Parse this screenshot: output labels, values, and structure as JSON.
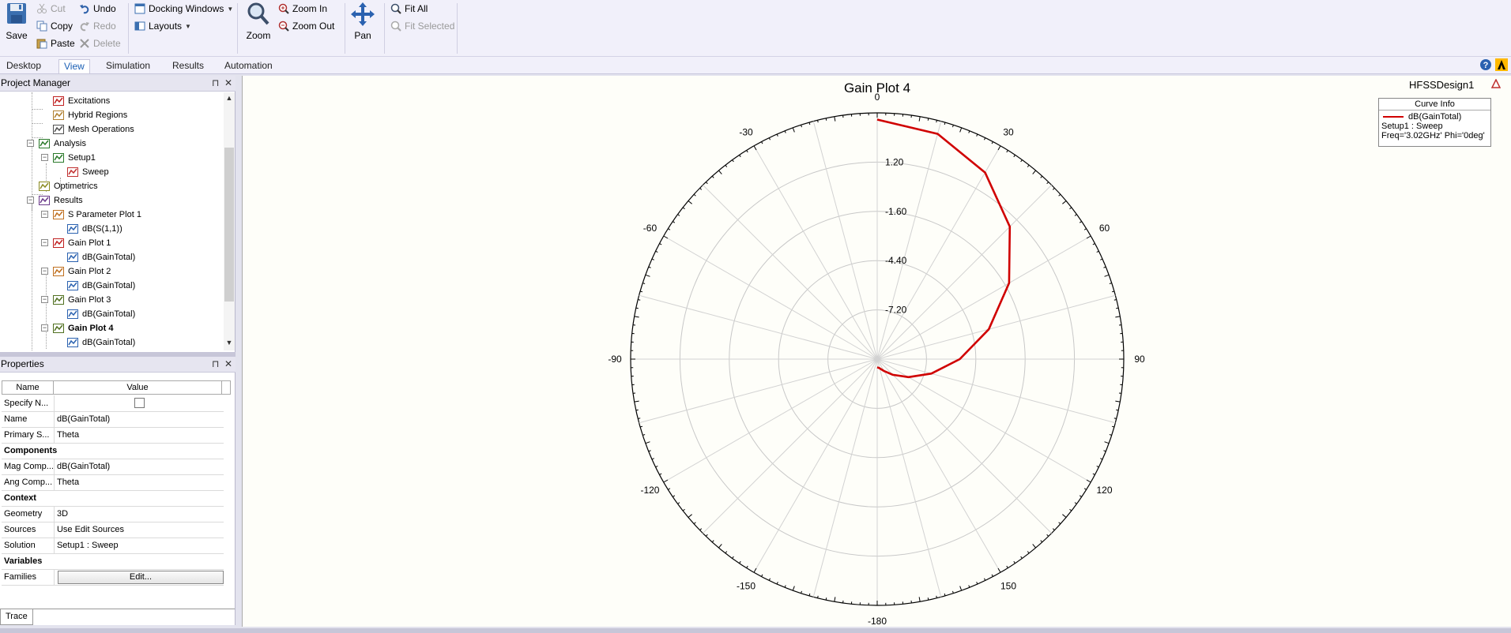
{
  "ribbon": {
    "save": "Save",
    "cut": "Cut",
    "copy": "Copy",
    "paste": "Paste",
    "undo": "Undo",
    "redo": "Redo",
    "delete": "Delete",
    "docking_windows": "Docking Windows",
    "layouts": "Layouts",
    "zoom": "Zoom",
    "zoom_in": "Zoom In",
    "zoom_out": "Zoom Out",
    "pan": "Pan",
    "fit_all": "Fit All",
    "fit_selected": "Fit Selected"
  },
  "tabs": [
    "Desktop",
    "View",
    "Simulation",
    "Results",
    "Automation"
  ],
  "active_tab": "View",
  "project_manager": {
    "title": "Project Manager",
    "tree": [
      {
        "label": "Excitations",
        "icon": "excitations-icon"
      },
      {
        "label": "Hybrid Regions",
        "icon": "hybrid-regions-icon"
      },
      {
        "label": "Mesh Operations",
        "icon": "mesh-operations-icon"
      },
      {
        "label": "Analysis",
        "icon": "analysis-icon"
      },
      {
        "label": "Setup1",
        "icon": "setup-icon"
      },
      {
        "label": "Sweep",
        "icon": "sweep-icon"
      },
      {
        "label": "Optimetrics",
        "icon": "optimetrics-icon"
      },
      {
        "label": "Results",
        "icon": "results-icon"
      },
      {
        "label": "S Parameter Plot 1",
        "icon": "rect-plot-icon"
      },
      {
        "label": "dB(S(1,1))",
        "icon": "trace-icon"
      },
      {
        "label": "Gain Plot 1",
        "icon": "3d-plot-icon"
      },
      {
        "label": "dB(GainTotal)",
        "icon": "trace-icon"
      },
      {
        "label": "Gain Plot 2",
        "icon": "rect-plot-icon"
      },
      {
        "label": "dB(GainTotal)",
        "icon": "trace-icon"
      },
      {
        "label": "Gain Plot 3",
        "icon": "polar-plot-icon"
      },
      {
        "label": "dB(GainTotal)",
        "icon": "trace-icon"
      },
      {
        "label": "Gain Plot 4",
        "icon": "polar-plot-icon"
      },
      {
        "label": "dB(GainTotal)",
        "icon": "trace-icon"
      }
    ]
  },
  "properties": {
    "title": "Properties",
    "col_name": "Name",
    "col_value": "Value",
    "rows": [
      {
        "name": "Specify N...",
        "value": ""
      },
      {
        "name": "Name",
        "value": "dB(GainTotal)"
      },
      {
        "name": "Primary S...",
        "value": "Theta"
      },
      {
        "section": "Components"
      },
      {
        "name": "Mag Comp...",
        "value": "dB(GainTotal)"
      },
      {
        "name": "Ang Comp...",
        "value": "Theta"
      },
      {
        "section": "Context"
      },
      {
        "name": "Geometry",
        "value": "3D"
      },
      {
        "name": "Sources",
        "value": "Use Edit Sources"
      },
      {
        "name": "Solution",
        "value": "Setup1 : Sweep"
      },
      {
        "section": "Variables"
      },
      {
        "name": "Families",
        "value": "Edit..."
      }
    ],
    "bottom_tab": "Trace"
  },
  "plot": {
    "design_name": "HFSSDesign1",
    "curve_info": {
      "header": "Curve Info",
      "trace": "dB(GainTotal)",
      "line1": "Setup1 : Sweep",
      "line2": "Freq='3.02GHz' Phi='0deg'"
    }
  },
  "chart_data": {
    "type": "polar",
    "title": "Gain Plot 4",
    "radial_ticks": [
      1.2,
      -1.6,
      -4.4,
      -7.2
    ],
    "radial_range": [
      -10.0,
      4.0
    ],
    "angle_labels": [
      0,
      30,
      60,
      90,
      120,
      150,
      -180,
      -150,
      -120,
      -90,
      -60,
      -30
    ],
    "angle_grid_step_deg": 15,
    "series": [
      {
        "name": "dB(GainTotal)",
        "color": "#d00000",
        "theta_deg": [
          0,
          15,
          30,
          45,
          60,
          75,
          90,
          105,
          120,
          135,
          150,
          165,
          180
        ],
        "r_db": [
          3.62,
          3.26,
          2.25,
          0.65,
          -1.35,
          -3.44,
          -5.31,
          -6.82,
          -7.95,
          -8.74,
          -9.22,
          -9.46,
          -9.54
        ]
      }
    ]
  }
}
